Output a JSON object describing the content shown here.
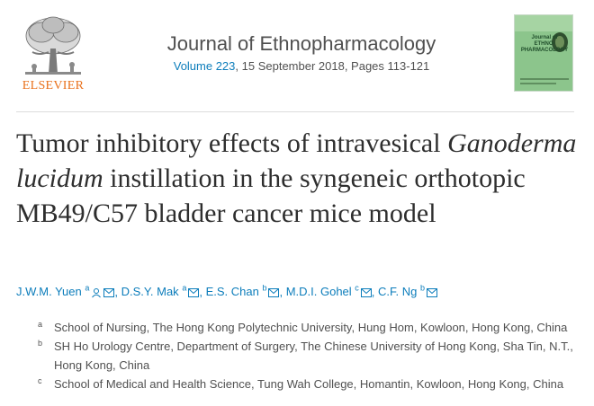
{
  "publisher": {
    "name": "ELSEVIER"
  },
  "journal": {
    "title": "Journal of Ethnopharmacology",
    "volume_label": "Volume 223",
    "meta_rest": ", 15 September 2018, Pages 113-121",
    "cover_lines": [
      "Journal of",
      "ETHNO-",
      "PHARMACOLOGY"
    ]
  },
  "article": {
    "title_part1": "Tumor inhibitory effects of intravesical ",
    "title_italic": "Ganoderma lucidum",
    "title_part2": " instillation in the syngeneic orthotopic MB49/C57 bladder cancer mice model"
  },
  "authors": [
    {
      "name": "J.W.M. Yuen",
      "sup": "a",
      "icons": [
        "person-icon",
        "envelope-icon"
      ]
    },
    {
      "name": "D.S.Y. Mak",
      "sup": "a",
      "icons": [
        "envelope-icon"
      ]
    },
    {
      "name": "E.S. Chan",
      "sup": "b",
      "icons": [
        "envelope-icon"
      ]
    },
    {
      "name": "M.D.I. Gohel",
      "sup": "c",
      "icons": [
        "envelope-icon"
      ]
    },
    {
      "name": "C.F. Ng",
      "sup": "b",
      "icons": [
        "envelope-icon"
      ]
    }
  ],
  "affiliations": [
    {
      "mark": "a",
      "text": "School of Nursing, The Hong Kong Polytechnic University, Hung Hom, Kowloon, Hong Kong, China"
    },
    {
      "mark": "b",
      "text": "SH Ho Urology Centre, Department of Surgery, The Chinese University of Hong Kong, Sha Tin, N.T., Hong Kong, China"
    },
    {
      "mark": "c",
      "text": "School of Medical and Health Science, Tung Wah College, Homantin, Kowloon, Hong Kong, China"
    }
  ],
  "colors": {
    "link": "#0c7dbb",
    "brand_orange": "#e9711c",
    "text": "#2e2e2e"
  }
}
